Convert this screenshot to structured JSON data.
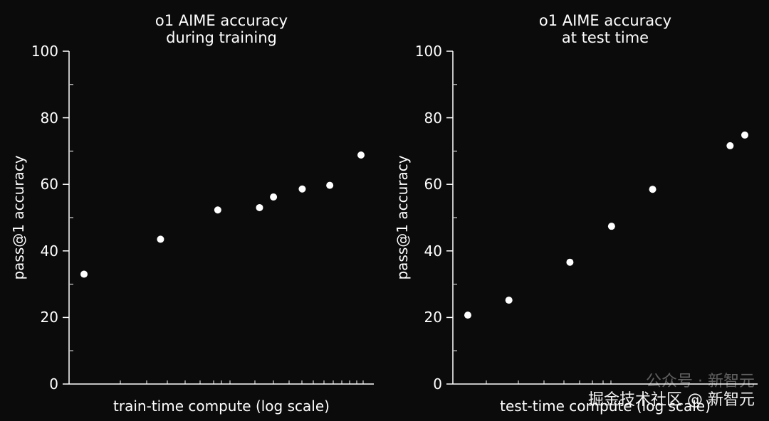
{
  "colors": {
    "background": "#0b0b0b",
    "foreground": "#ffffff"
  },
  "chart_data": [
    {
      "type": "scatter",
      "title": [
        "o1 AIME accuracy",
        "during training"
      ],
      "xlabel": "train-time compute (log scale)",
      "ylabel": "pass@1 accuracy",
      "ylim": [
        0,
        100
      ],
      "yticks": [
        "0",
        "20",
        "40",
        "60",
        "80",
        "100"
      ],
      "x_scale": "log",
      "grid": false,
      "points": [
        {
          "x": 1.0,
          "y": 33
        },
        {
          "x": 3.9,
          "y": 43.5
        },
        {
          "x": 10.8,
          "y": 52.3
        },
        {
          "x": 22.7,
          "y": 53
        },
        {
          "x": 29.1,
          "y": 56.2
        },
        {
          "x": 48.5,
          "y": 58.6
        },
        {
          "x": 79.2,
          "y": 59.7
        },
        {
          "x": 138,
          "y": 68.8
        }
      ]
    },
    {
      "type": "scatter",
      "title": [
        "o1 AIME accuracy",
        "at test time"
      ],
      "xlabel": "test-time compute (log scale)",
      "ylabel": "pass@1 accuracy",
      "ylim": [
        0,
        100
      ],
      "yticks": [
        "0",
        "20",
        "40",
        "60",
        "80",
        "100"
      ],
      "x_scale": "log",
      "grid": false,
      "points": [
        {
          "x": 1.0,
          "y": 20.7
        },
        {
          "x": 2.0,
          "y": 25.2
        },
        {
          "x": 5.6,
          "y": 36.6
        },
        {
          "x": 11.3,
          "y": 47.4
        },
        {
          "x": 22.6,
          "y": 58.5
        },
        {
          "x": 83.5,
          "y": 71.6
        },
        {
          "x": 107,
          "y": 74.8
        }
      ]
    }
  ],
  "watermark": {
    "line1": "公众号 · 新智元",
    "line2": "掘金技术社区 @ 新智元"
  }
}
